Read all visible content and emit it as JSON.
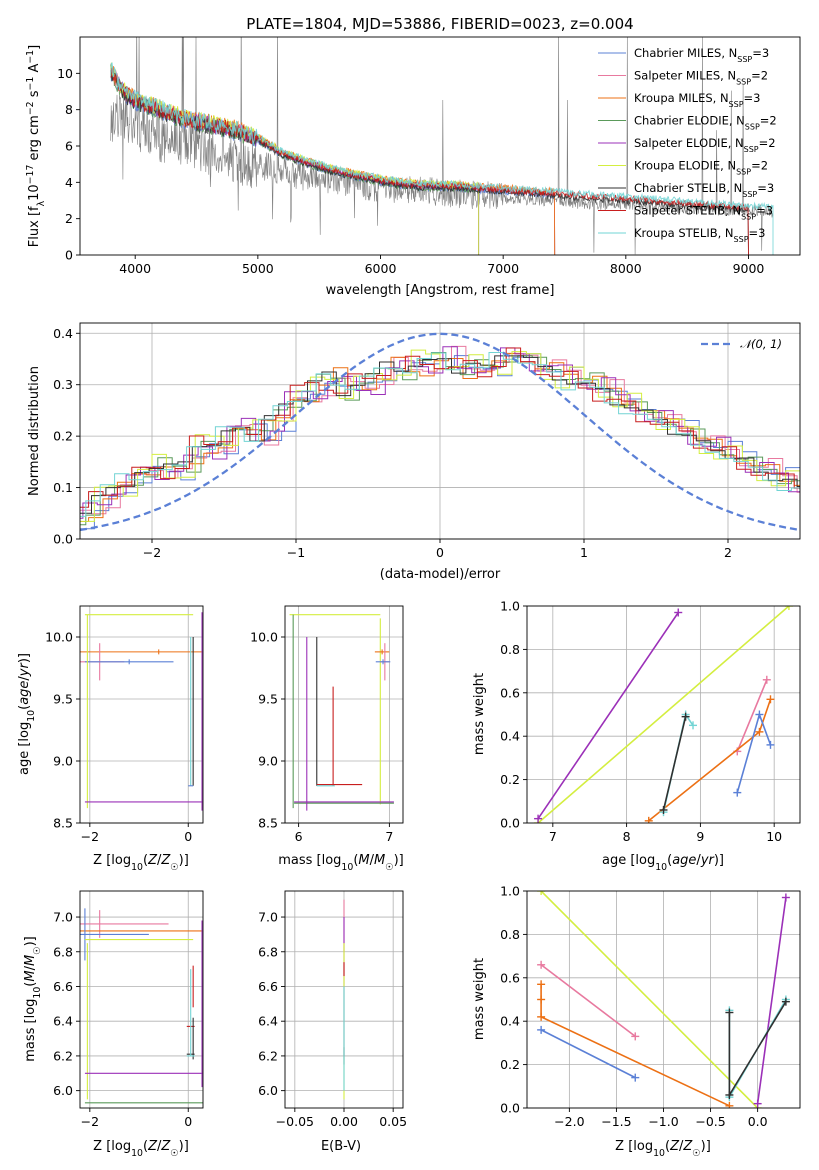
{
  "chart_data": [
    {
      "type": "line",
      "title": "PLATE=1804, MJD=53886, FIBERID=0023, z=0.004",
      "xlabel": "wavelength [Angstrom, rest frame]",
      "ylabel": "Flux [f_λ 10^-17 erg cm^-2 s^-1 A^-1]",
      "xlim": [
        3550,
        9420
      ],
      "ylim": [
        0,
        12
      ],
      "xticks": [
        "4000",
        "5000",
        "6000",
        "7000",
        "8000",
        "9000"
      ],
      "yticks": [
        "0",
        "2",
        "4",
        "6",
        "8",
        "10"
      ],
      "grid": false,
      "legend_position": "upper right",
      "observed_spectrum": {
        "color": "#808080",
        "x": [
          3800,
          3900,
          4000,
          4100,
          4200,
          4300,
          4400,
          4500,
          4600,
          4700,
          4800,
          4900,
          5000,
          5200,
          5400,
          5600,
          5800,
          6000,
          6200,
          6400,
          6600,
          6800,
          7000,
          7200,
          7400,
          7600,
          7800,
          8000,
          8200,
          8400,
          8600,
          8800,
          9000,
          9200
        ],
        "y": [
          7.5,
          7.8,
          7.2,
          6.8,
          6.5,
          6.2,
          6.3,
          6.0,
          5.7,
          5.6,
          5.3,
          5.1,
          5.0,
          4.6,
          4.3,
          4.1,
          3.9,
          3.7,
          3.6,
          3.5,
          3.4,
          3.3,
          3.2,
          3.1,
          3.0,
          2.9,
          2.8,
          2.8,
          2.7,
          2.6,
          2.6,
          2.5,
          2.5,
          2.4
        ]
      },
      "model_x": [
        3800,
        3850,
        3900,
        4000,
        4200,
        4400,
        4600,
        4800,
        5000,
        5200,
        5400,
        5600,
        5800,
        6000,
        6200,
        6400,
        6600,
        6800,
        7000,
        7200,
        7400
      ],
      "model_y": [
        10.2,
        9.6,
        9.0,
        8.5,
        8.0,
        7.5,
        7.2,
        6.9,
        6.4,
        5.6,
        5.1,
        4.7,
        4.4,
        4.1,
        3.9,
        3.8,
        3.8,
        3.7,
        3.6,
        3.5,
        3.4
      ],
      "series": [
        {
          "name": "Chabrier MILES, N_SSP=3",
          "color": "#5b80d6",
          "range": [
            3800,
            7420
          ]
        },
        {
          "name": "Salpeter MILES, N_SSP=2",
          "color": "#e8799f",
          "range": [
            3800,
            7420
          ]
        },
        {
          "name": "Kroupa MILES, N_SSP=3",
          "color": "#ec7014",
          "range": [
            3800,
            7420
          ]
        },
        {
          "name": "Chabrier ELODIE, N_SSP=2",
          "color": "#5a9a5a",
          "range": [
            3800,
            6800
          ]
        },
        {
          "name": "Salpeter ELODIE, N_SSP=2",
          "color": "#9b30b8",
          "range": [
            3800,
            6800
          ]
        },
        {
          "name": "Kroupa ELODIE, N_SSP=2",
          "color": "#d4ee40",
          "range": [
            3800,
            6800
          ]
        },
        {
          "name": "Chabrier STELIB, N_SSP=3",
          "color": "#303030",
          "range": [
            3800,
            9000
          ]
        },
        {
          "name": "Salpeter STELIB, N_SSP=3",
          "color": "#c81e1e",
          "range": [
            3800,
            9000
          ]
        },
        {
          "name": "Kroupa STELIB, N_SSP=3",
          "color": "#72d4d4",
          "range": [
            3800,
            9200
          ]
        }
      ]
    },
    {
      "type": "histogram",
      "xlabel": "(data-model)/error",
      "ylabel": "Normed distribution",
      "xlim": [
        -2.5,
        2.5
      ],
      "ylim": [
        0,
        0.42
      ],
      "xticks": [
        "−2",
        "−1",
        "0",
        "1",
        "2"
      ],
      "yticks": [
        "0.0",
        "0.1",
        "0.2",
        "0.3",
        "0.4"
      ],
      "grid": true,
      "legend": [
        {
          "name": "𝒩(0, 1)",
          "color": "#5b80d6",
          "style": "dashed"
        }
      ],
      "legend_position": "upper right",
      "bin_width": 0.1,
      "bin_start": -2.5,
      "hist_values": [
        0.03,
        0.05,
        0.08,
        0.1,
        0.11,
        0.13,
        0.14,
        0.13,
        0.15,
        0.19,
        0.18,
        0.21,
        0.22,
        0.2,
        0.23,
        0.26,
        0.28,
        0.3,
        0.31,
        0.29,
        0.3,
        0.31,
        0.33,
        0.33,
        0.34,
        0.34,
        0.35,
        0.33,
        0.34,
        0.33,
        0.35,
        0.36,
        0.34,
        0.33,
        0.32,
        0.31,
        0.3,
        0.29,
        0.27,
        0.26,
        0.24,
        0.23,
        0.22,
        0.2,
        0.18,
        0.17,
        0.16,
        0.14,
        0.13,
        0.12,
        0.11,
        0.1,
        0.1,
        0.09,
        0.08,
        0.07,
        0.06,
        0.05,
        0.04,
        0.03,
        0.03,
        0.025,
        0.02,
        0.02,
        0.02,
        0.02,
        0.02,
        0.02,
        0.02,
        0.02
      ],
      "series_offsets": [
        {
          "color": "#5b80d6",
          "amp": 0.012,
          "phase": 0.0
        },
        {
          "color": "#e8799f",
          "amp": 0.018,
          "phase": 1.3
        },
        {
          "color": "#ec7014",
          "amp": 0.015,
          "phase": 2.1
        },
        {
          "color": "#5a9a5a",
          "amp": 0.014,
          "phase": 3.4
        },
        {
          "color": "#9b30b8",
          "amp": 0.02,
          "phase": 0.7
        },
        {
          "color": "#d4ee40",
          "amp": 0.025,
          "phase": 4.2
        },
        {
          "color": "#303030",
          "amp": 0.01,
          "phase": 2.8
        },
        {
          "color": "#c81e1e",
          "amp": 0.013,
          "phase": 5.0
        },
        {
          "color": "#72d4d4",
          "amp": 0.011,
          "phase": 1.9
        }
      ]
    },
    {
      "type": "errorbar",
      "xlabel": "Z [log10(Z/Z☉)]",
      "ylabel": "age [log10(age/yr)]",
      "xlim": [
        -2.2,
        0.3
      ],
      "ylim": [
        8.5,
        10.25
      ],
      "xticks": [
        "−2",
        "0"
      ],
      "yticks": [
        "8.5",
        "9.0",
        "9.5",
        "10.0"
      ],
      "grid": true,
      "points": [
        {
          "color": "#ec7014",
          "x": -0.6,
          "xerr": 1.7,
          "y": 9.88,
          "yerr": 0.02
        },
        {
          "color": "#e8799f",
          "x": -1.8,
          "xerr": 0.5,
          "y": 9.8,
          "yerr": 0.15
        },
        {
          "color": "#5b80d6",
          "x": -1.2,
          "xerr": 0.9,
          "y": 9.8,
          "yerr": 0.02
        },
        {
          "color": "#d4ee40",
          "x": -1.0,
          "xerr": 1.1,
          "y": 10.18,
          "yerr": 0.0
        },
        {
          "color": "#d4ee40",
          "x": -2.05,
          "xerr": 0.0,
          "y": 9.4,
          "yerr": 0.78
        },
        {
          "color": "#9b30b8",
          "x": -0.9,
          "xerr": 1.2,
          "y": 8.67,
          "yerr": 0.0
        },
        {
          "color": "#9b30b8",
          "x": 0.28,
          "xerr": 0.0,
          "y": 9.4,
          "yerr": 0.8
        },
        {
          "color": "#72d4d4",
          "x": 0.05,
          "xerr": 0.0,
          "y": 9.4,
          "yerr": 0.6
        },
        {
          "color": "#303030",
          "x": 0.1,
          "xerr": 0.0,
          "y": 9.4,
          "yerr": 0.6
        },
        {
          "color": "#5b80d6",
          "x": 0.05,
          "xerr": 0.05,
          "y": 8.8,
          "yerr": 0.0
        }
      ]
    },
    {
      "type": "errorbar",
      "xlabel": "mass [log10(M/M☉)]",
      "ylabel": "",
      "xlim": [
        5.85,
        7.15
      ],
      "ylim": [
        8.5,
        10.25
      ],
      "xticks": [
        "6",
        "7"
      ],
      "yticks": [
        "8.5",
        "9.0",
        "9.5",
        "10.0"
      ],
      "grid": true,
      "points": [
        {
          "color": "#d4ee40",
          "x": 6.4,
          "xerr": 0.5,
          "y": 10.18,
          "yerr": 0.0
        },
        {
          "color": "#d4ee40",
          "x": 6.9,
          "xerr": 0.0,
          "y": 9.4,
          "yerr": 0.75
        },
        {
          "color": "#ec7014",
          "x": 6.92,
          "xerr": 0.08,
          "y": 9.88,
          "yerr": 0.02
        },
        {
          "color": "#e8799f",
          "x": 6.95,
          "xerr": 0.05,
          "y": 9.8,
          "yerr": 0.15
        },
        {
          "color": "#5b80d6",
          "x": 6.93,
          "xerr": 0.08,
          "y": 9.8,
          "yerr": 0.02
        },
        {
          "color": "#5a9a5a",
          "x": 5.94,
          "xerr": 0.0,
          "y": 9.4,
          "yerr": 0.78
        },
        {
          "color": "#5a9a5a",
          "x": 6.5,
          "xerr": 0.55,
          "y": 8.66,
          "yerr": 0.0
        },
        {
          "color": "#9b30b8",
          "x": 6.5,
          "xerr": 0.55,
          "y": 8.67,
          "yerr": 0.0
        },
        {
          "color": "#9b30b8",
          "x": 6.09,
          "xerr": 0.0,
          "y": 9.3,
          "yerr": 0.7
        },
        {
          "color": "#303030",
          "x": 6.2,
          "xerr": 0.0,
          "y": 9.4,
          "yerr": 0.6
        },
        {
          "color": "#c81e1e",
          "x": 6.45,
          "xerr": 0.25,
          "y": 8.81,
          "yerr": 0.0
        },
        {
          "color": "#c81e1e",
          "x": 6.38,
          "xerr": 0.0,
          "y": 9.2,
          "yerr": 0.4
        },
        {
          "color": "#72d4d4",
          "x": 6.3,
          "xerr": 0.1,
          "y": 8.8,
          "yerr": 0.0
        }
      ]
    },
    {
      "type": "line",
      "xlabel": "age [log10(age/yr)]",
      "ylabel": "mass weight",
      "xlim": [
        6.65,
        10.35
      ],
      "ylim": [
        0.0,
        1.0
      ],
      "xticks": [
        "7",
        "8",
        "9",
        "10"
      ],
      "yticks": [
        "0.0",
        "0.2",
        "0.4",
        "0.6",
        "0.8",
        "1.0"
      ],
      "grid": true,
      "series": [
        {
          "color": "#d4ee40",
          "x": [
            6.8,
            10.2
          ],
          "y": [
            0.0,
            1.0
          ]
        },
        {
          "color": "#9b30b8",
          "x": [
            6.8,
            8.7
          ],
          "y": [
            0.02,
            0.97
          ]
        },
        {
          "color": "#e8799f",
          "x": [
            9.5,
            9.9
          ],
          "y": [
            0.33,
            0.66
          ]
        },
        {
          "color": "#ec7014",
          "x": [
            8.3,
            9.8,
            9.95
          ],
          "y": [
            0.01,
            0.42,
            0.57
          ]
        },
        {
          "color": "#5b80d6",
          "x": [
            9.5,
            9.8,
            9.95
          ],
          "y": [
            0.14,
            0.5,
            0.36
          ]
        },
        {
          "color": "#72d4d4",
          "x": [
            8.5,
            8.8,
            8.9
          ],
          "y": [
            0.05,
            0.5,
            0.45
          ]
        },
        {
          "color": "#303030",
          "x": [
            8.5,
            8.8
          ],
          "y": [
            0.06,
            0.49
          ]
        }
      ]
    },
    {
      "type": "errorbar",
      "xlabel": "Z [log10(Z/Z☉)]",
      "ylabel": "mass [log10(M/M☉)]",
      "xlim": [
        -2.2,
        0.3
      ],
      "ylim": [
        5.9,
        7.15
      ],
      "xticks": [
        "−2",
        "0"
      ],
      "yticks": [
        "6.0",
        "6.2",
        "6.4",
        "6.6",
        "6.8",
        "7.0"
      ],
      "grid": true,
      "points": [
        {
          "color": "#e8799f",
          "x": -1.3,
          "xerr": 0.9,
          "y": 6.96,
          "yerr": 0.0
        },
        {
          "color": "#e8799f",
          "x": -1.8,
          "xerr": 0.0,
          "y": 6.96,
          "yerr": 0.08
        },
        {
          "color": "#ec7014",
          "x": -0.8,
          "xerr": 1.4,
          "y": 6.92,
          "yerr": 0.0
        },
        {
          "color": "#5b80d6",
          "x": -1.5,
          "xerr": 0.7,
          "y": 6.9,
          "yerr": 0.0
        },
        {
          "color": "#5b80d6",
          "x": -2.1,
          "xerr": 0.0,
          "y": 6.9,
          "yerr": 0.15
        },
        {
          "color": "#d4ee40",
          "x": -1.0,
          "xerr": 1.1,
          "y": 6.87,
          "yerr": 0.0
        },
        {
          "color": "#d4ee40",
          "x": -2.05,
          "xerr": 0.0,
          "y": 6.4,
          "yerr": 0.45
        },
        {
          "color": "#9b30b8",
          "x": -0.9,
          "xerr": 1.2,
          "y": 6.1,
          "yerr": 0.0
        },
        {
          "color": "#9b30b8",
          "x": 0.28,
          "xerr": 0.0,
          "y": 6.5,
          "yerr": 0.48
        },
        {
          "color": "#5a9a5a",
          "x": -0.9,
          "xerr": 1.2,
          "y": 5.93,
          "yerr": 0.0
        },
        {
          "color": "#c81e1e",
          "x": 0.05,
          "xerr": 0.08,
          "y": 6.37,
          "yerr": 0.0
        },
        {
          "color": "#c81e1e",
          "x": 0.1,
          "xerr": 0.0,
          "y": 6.6,
          "yerr": 0.12
        },
        {
          "color": "#303030",
          "x": 0.05,
          "xerr": 0.08,
          "y": 6.21,
          "yerr": 0.0
        },
        {
          "color": "#303030",
          "x": 0.1,
          "xerr": 0.0,
          "y": 6.3,
          "yerr": 0.12
        },
        {
          "color": "#72d4d4",
          "x": 0.05,
          "xerr": 0.08,
          "y": 6.2,
          "yerr": 0.0
        },
        {
          "color": "#72d4d4",
          "x": 0.05,
          "xerr": 0.0,
          "y": 6.45,
          "yerr": 0.25
        }
      ]
    },
    {
      "type": "errorbar",
      "xlabel": "E(B-V)",
      "ylabel": "",
      "xlim": [
        -0.06,
        0.06
      ],
      "ylim": [
        5.9,
        7.15
      ],
      "xticks": [
        "−0.05",
        "0.00",
        "0.05"
      ],
      "yticks": [
        "6.0",
        "6.2",
        "6.4",
        "6.6",
        "6.8",
        "7.0"
      ],
      "grid": true,
      "points": [
        {
          "color": "#e8799f",
          "x": 0.0,
          "xerr": 0.0,
          "y": 6.95,
          "yerr": 0.15
        },
        {
          "color": "#9b30b8",
          "x": 0.0,
          "xerr": 0.0,
          "y": 6.6,
          "yerr": 0.4
        },
        {
          "color": "#d4ee40",
          "x": 0.0,
          "xerr": 0.0,
          "y": 6.4,
          "yerr": 0.45
        },
        {
          "color": "#c81e1e",
          "x": 0.0,
          "xerr": 0.0,
          "y": 6.7,
          "yerr": 0.04
        },
        {
          "color": "#303030",
          "x": 0.0,
          "xerr": 0.0,
          "y": 6.2,
          "yerr": 0.05
        },
        {
          "color": "#72d4d4",
          "x": 0.0,
          "xerr": 0.0,
          "y": 6.3,
          "yerr": 0.3
        }
      ]
    },
    {
      "type": "line",
      "xlabel": "Z [log10(Z/Z☉)]",
      "ylabel": "mass weight",
      "xlim": [
        -2.45,
        0.45
      ],
      "ylim": [
        0.0,
        1.0
      ],
      "xticks": [
        "−2.0",
        "−1.5",
        "−1.0",
        "−0.5",
        "0.0"
      ],
      "yticks": [
        "0.0",
        "0.2",
        "0.4",
        "0.6",
        "0.8",
        "1.0"
      ],
      "grid": true,
      "series": [
        {
          "color": "#d4ee40",
          "x": [
            -2.3,
            0.0
          ],
          "y": [
            1.0,
            0.0
          ]
        },
        {
          "color": "#9b30b8",
          "x": [
            0.0,
            0.3
          ],
          "y": [
            0.02,
            0.97
          ]
        },
        {
          "color": "#e8799f",
          "x": [
            -2.3,
            -1.3
          ],
          "y": [
            0.66,
            0.33
          ]
        },
        {
          "color": "#ec7014",
          "x": [
            -2.3,
            -2.3,
            -2.3,
            -0.3
          ],
          "y": [
            0.57,
            0.5,
            0.42,
            0.01
          ]
        },
        {
          "color": "#5b80d6",
          "x": [
            -2.3,
            -1.3
          ],
          "y": [
            0.36,
            0.14
          ]
        },
        {
          "color": "#72d4d4",
          "x": [
            -0.3,
            -0.3,
            0.3
          ],
          "y": [
            0.45,
            0.05,
            0.5
          ]
        },
        {
          "color": "#303030",
          "x": [
            -0.3,
            -0.3,
            0.3
          ],
          "y": [
            0.44,
            0.06,
            0.49
          ]
        }
      ]
    }
  ]
}
